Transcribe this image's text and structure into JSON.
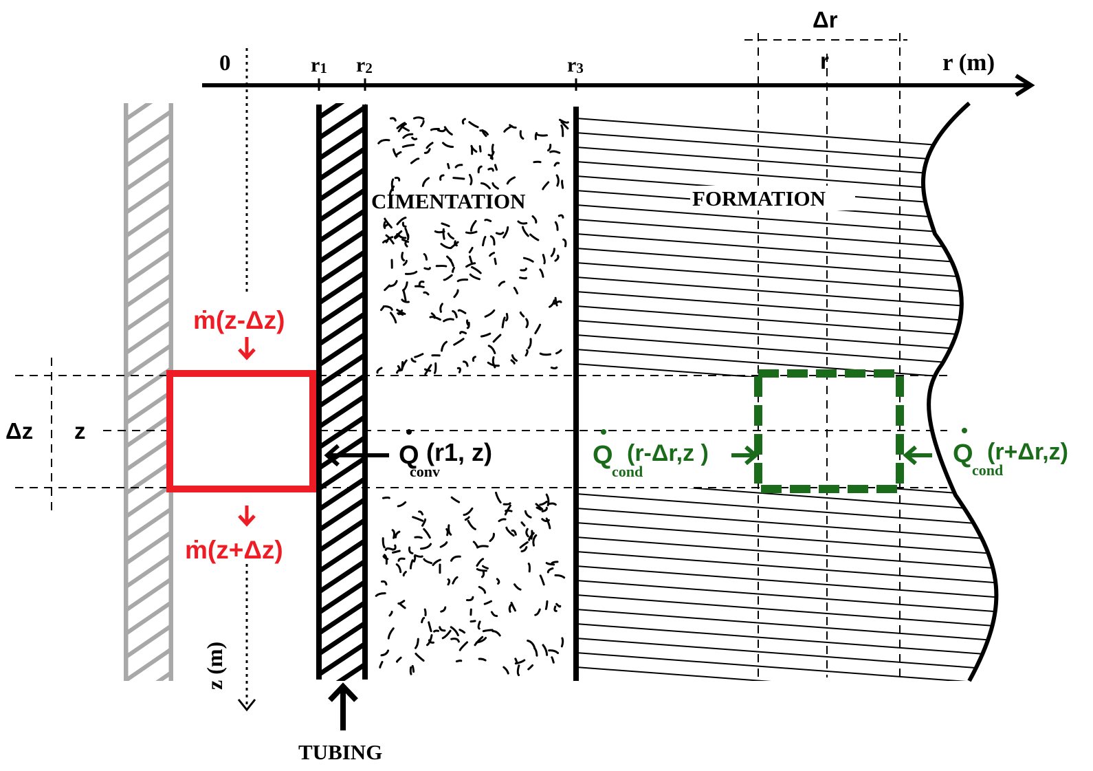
{
  "axis": {
    "r_label": "r (m)",
    "z_label": "z (m)",
    "origin": "0",
    "r1_base": "r",
    "r1_sub": "1",
    "r2_base": "r",
    "r2_sub": "2",
    "r3_base": "r",
    "r3_sub": "3",
    "delta_r": "Δr",
    "r": "r",
    "delta_z": "Δz",
    "z": "z"
  },
  "regions": {
    "cimentation": "CIMENTATION",
    "formation": "FORMATION",
    "tubing": "TUBING"
  },
  "fluid": {
    "m_in_symbol": "ṁ",
    "m_in_arg": "(z-Δz)",
    "m_out_symbol": "ṁ",
    "m_out_arg": "(z+Δz)"
  },
  "heat": {
    "q_conv_symbol": "Q",
    "q_conv_sub": "conv",
    "q_conv_arg": "(r1, z)",
    "q_cond_left_symbol": "Q",
    "q_cond_left_sub": "cond",
    "q_cond_left_arg": "(r-Δr,z )",
    "q_cond_right_symbol": "Q",
    "q_cond_right_sub": "cond",
    "q_cond_right_arg": "(r+Δr,z)"
  },
  "colors": {
    "mass_flow": "#ee1c24",
    "conduction": "#1a6b1a",
    "casing": "#a8a8a8",
    "ink": "#000000"
  }
}
